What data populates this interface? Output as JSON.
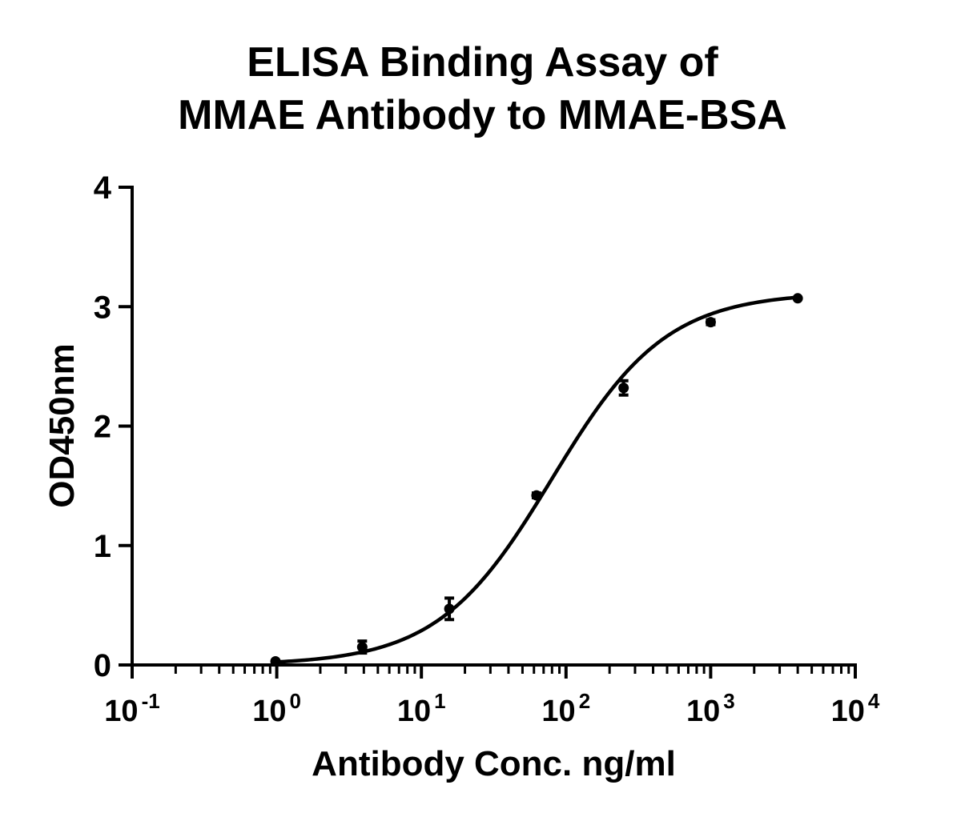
{
  "chart_data": {
    "type": "scatter",
    "title": [
      "ELISA Binding Assay of",
      "MMAE Antibody to MMAE-BSA"
    ],
    "xlabel": "Antibody Conc. ng/ml",
    "ylabel": "OD450nm",
    "x_scale": "log10",
    "xlim": [
      0.1,
      10000
    ],
    "ylim": [
      0,
      4
    ],
    "x_ticks": [
      {
        "base": "10",
        "exp": "-1",
        "value": 0.1
      },
      {
        "base": "10",
        "exp": "0",
        "value": 1
      },
      {
        "base": "10",
        "exp": "1",
        "value": 10
      },
      {
        "base": "10",
        "exp": "2",
        "value": 100
      },
      {
        "base": "10",
        "exp": "3",
        "value": 1000
      },
      {
        "base": "10",
        "exp": "4",
        "value": 10000
      }
    ],
    "y_ticks": [
      "0",
      "1",
      "2",
      "3",
      "4"
    ],
    "grid": false,
    "legend": "none",
    "series": [
      {
        "points": [
          {
            "x": 0.98,
            "y": 0.03,
            "err": 0.01
          },
          {
            "x": 3.9,
            "y": 0.15,
            "err": 0.05
          },
          {
            "x": 15.6,
            "y": 0.47,
            "err": 0.09
          },
          {
            "x": 62.5,
            "y": 1.42,
            "err": 0.02
          },
          {
            "x": 250,
            "y": 2.32,
            "err": 0.06
          },
          {
            "x": 1000,
            "y": 2.87,
            "err": 0.02
          },
          {
            "x": 4000,
            "y": 3.07,
            "err": 0.01
          }
        ],
        "fit": {
          "model": "4PL",
          "bottom": 0.0,
          "top": 3.12,
          "ec50": 80,
          "hill": 1.1
        }
      }
    ],
    "colors": {
      "line": "#000000",
      "marker": "#000000"
    }
  }
}
